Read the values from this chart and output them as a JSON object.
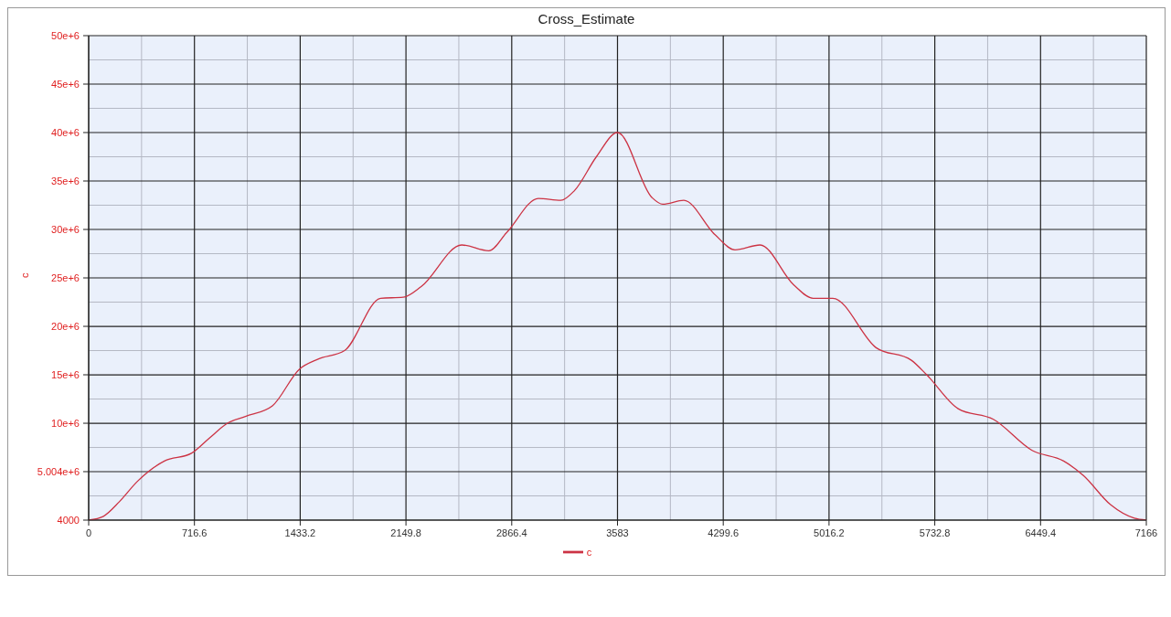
{
  "chart_data": {
    "type": "line",
    "title": "Cross_Estimate",
    "ylabel": "c",
    "x": [
      0,
      100,
      208,
      330,
      513,
      696,
      820,
      940,
      1062,
      1245,
      1429,
      1551,
      1734,
      1978,
      2131,
      2253,
      2528,
      2711,
      2833,
      3047,
      3199,
      3291,
      3440,
      3583,
      3816,
      3889,
      4032,
      4244,
      4379,
      4549,
      4776,
      4909,
      5042,
      5335,
      5574,
      5678,
      5891,
      6130,
      6392,
      6606,
      6740,
      6923,
      7085,
      7166
    ],
    "series": [
      {
        "name": "c",
        "color": "#cc3344",
        "values": [
          4000,
          400000,
          1900000,
          4000000,
          6100000,
          6900000,
          8500000,
          10000000,
          10700000,
          11800000,
          15600000,
          16600000,
          17500000,
          22900000,
          23000000,
          24100000,
          28400000,
          27800000,
          29700000,
          33200000,
          33000000,
          34000000,
          37500000,
          40000000,
          33300000,
          32600000,
          33000000,
          29450000,
          27900000,
          28400000,
          24300000,
          22900000,
          22900000,
          17800000,
          16500000,
          15000000,
          11500000,
          10400000,
          7200000,
          6100000,
          4600000,
          1600000,
          200000,
          4000
        ]
      }
    ],
    "xlim": [
      0,
      7166
    ],
    "xticks": [
      0,
      {
        "value": 358.3,
        "label": null
      },
      716.6,
      {
        "value": 1074.9,
        "label": null
      },
      1433.2,
      {
        "value": 1791.5,
        "label": null
      },
      2149.8,
      {
        "value": 2508.1,
        "label": null
      },
      2866.4,
      {
        "value": 3224.7,
        "label": null
      },
      3583,
      {
        "value": 3941.3,
        "label": null
      },
      4299.6,
      {
        "value": 4657.9,
        "label": null
      },
      5016.2,
      {
        "value": 5374.5,
        "label": null
      },
      5732.8,
      {
        "value": 6091.1,
        "label": null
      },
      6449.4,
      {
        "value": 6807.7,
        "label": null
      },
      7166
    ],
    "ylim": [
      4000,
      50000000
    ],
    "yticks": [
      4000,
      {
        "value": 2504000,
        "label": null
      },
      {
        "value": 5004000,
        "label": "5.004e+6"
      },
      {
        "value": 7500000,
        "label": null
      },
      {
        "value": 10000000,
        "label": "10e+6"
      },
      {
        "value": 12500000,
        "label": null
      },
      {
        "value": 15000000,
        "label": "15e+6"
      },
      {
        "value": 17500000,
        "label": null
      },
      {
        "value": 20000000,
        "label": "20e+6"
      },
      {
        "value": 22500000,
        "label": null
      },
      {
        "value": 25000000,
        "label": "25e+6"
      },
      {
        "value": 27500000,
        "label": null
      },
      {
        "value": 30000000,
        "label": "30e+6"
      },
      {
        "value": 32500000,
        "label": null
      },
      {
        "value": 35000000,
        "label": "35e+6"
      },
      {
        "value": 37500000,
        "label": null
      },
      {
        "value": 40000000,
        "label": "40e+6"
      },
      {
        "value": 42500000,
        "label": null
      },
      {
        "value": 45000000,
        "label": "45e+6"
      },
      {
        "value": 47500000,
        "label": null
      },
      {
        "value": 50000000,
        "label": "50e+6"
      }
    ],
    "grid": true,
    "legend": "bottom"
  }
}
